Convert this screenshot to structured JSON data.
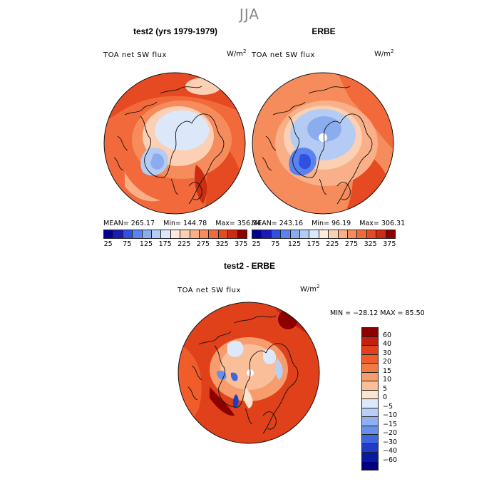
{
  "season_title": "JJA",
  "panel_left": {
    "title": "test2 (yrs 1979-1979)",
    "variable": "TOA net SW flux",
    "units_base": "W/m",
    "units_exp": "2",
    "stats": {
      "mean": "MEAN= 265.17",
      "min": "Min= 144.78",
      "max": "Max= 356.34"
    }
  },
  "panel_right": {
    "title": "ERBE",
    "variable": "TOA net SW flux",
    "units_base": "W/m",
    "units_exp": "2",
    "stats": {
      "mean": "MEAN= 243.16",
      "min": "Min=  96.19",
      "max": "Max= 306.31"
    }
  },
  "panel_diff": {
    "title": "test2 - ERBE",
    "variable": "TOA net SW flux",
    "units_base": "W/m",
    "units_exp": "2",
    "minmax": "MIN = −28.12 MAX =  85.50"
  },
  "colorbar_top": {
    "ticks": [
      "25",
      "75",
      "125",
      "175",
      "225",
      "275",
      "325",
      "375"
    ],
    "colors": [
      "#00008c",
      "#1a1ab4",
      "#3050e0",
      "#5a82f0",
      "#8cacf0",
      "#b4ccf4",
      "#dce8fa",
      "#fdeadc",
      "#fbd0b4",
      "#f9b088",
      "#f68c5c",
      "#f26a3c",
      "#e54a22",
      "#cc2c12",
      "#8c0000"
    ]
  },
  "colorbar_diff": {
    "labels": [
      "60",
      "40",
      "30",
      "20",
      "15",
      "10",
      "5",
      "0",
      "−5",
      "−10",
      "−15",
      "−20",
      "−30",
      "−40",
      "−60"
    ],
    "colors": [
      "#8c0000",
      "#c42010",
      "#e0401a",
      "#f05c2a",
      "#f47a44",
      "#f79c6c",
      "#fabe98",
      "#fde4d0",
      "#dde8fa",
      "#b8d0f6",
      "#8eb0f2",
      "#6690ec",
      "#3e66e0",
      "#1e3cc4",
      "#0a1aa0",
      "#00007c"
    ]
  },
  "map_colors": {
    "ocean_red": "#f26a3c",
    "deep_red": "#e54a22",
    "orange": "#f68c5c",
    "peach": "#fbd0b4",
    "light_blue": "#dce8fa",
    "mid_blue": "#8cacf0",
    "blue": "#3050e0"
  }
}
